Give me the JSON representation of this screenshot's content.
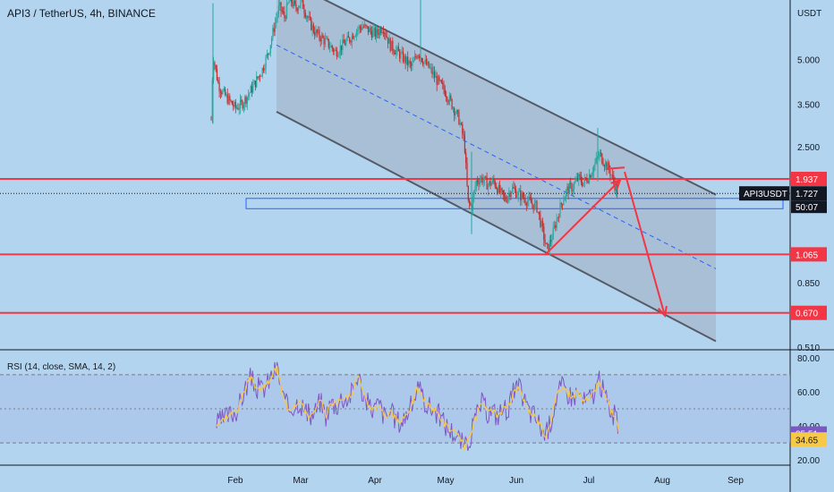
{
  "chart_data": {
    "type": "candlestick",
    "title": "API3 / TetherUS, 4h, BINANCE",
    "currency": "USDT",
    "symbol_tag": "API3USDT",
    "countdown": "50:07",
    "y_scale": "log",
    "ylim": [
      0.5,
      8.0
    ],
    "price_ticks": [
      "5.000",
      "3.500",
      "2.500",
      "0.850",
      "0.510"
    ],
    "price_tick_values": [
      5.0,
      3.5,
      2.5,
      0.85,
      0.51
    ],
    "time_ticks": [
      "Feb",
      "Mar",
      "Apr",
      "May",
      "Jun",
      "Jul",
      "Aug",
      "Sep"
    ],
    "levels": [
      {
        "value": 1.937,
        "label": "1.937"
      },
      {
        "value": 1.065,
        "label": "1.065"
      },
      {
        "value": 0.67,
        "label": "0.670"
      }
    ],
    "current_price": {
      "value": 1.727,
      "label": "1.727"
    },
    "channel": {
      "x_start": 309,
      "x_end": 800,
      "upper_start": 9.7,
      "upper_end": 1.71,
      "median_start": 5.6,
      "median_end": 0.95,
      "lower_start": 3.3,
      "lower_end": 0.535
    },
    "zone": {
      "top": 1.66,
      "bottom": 1.53
    },
    "price_path": [
      [
        236,
        3.1
      ],
      [
        238,
        5.2
      ],
      [
        241,
        4.6
      ],
      [
        244,
        4.1
      ],
      [
        250,
        3.8
      ],
      [
        256,
        3.6
      ],
      [
        263,
        3.4
      ],
      [
        270,
        3.5
      ],
      [
        278,
        3.8
      ],
      [
        286,
        4.2
      ],
      [
        293,
        4.6
      ],
      [
        300,
        5.3
      ],
      [
        306,
        6.4
      ],
      [
        312,
        7.6
      ],
      [
        318,
        7.0
      ],
      [
        324,
        8.1
      ],
      [
        330,
        7.5
      ],
      [
        337,
        7.9
      ],
      [
        345,
        6.8
      ],
      [
        352,
        6.2
      ],
      [
        360,
        5.9
      ],
      [
        368,
        5.6
      ],
      [
        375,
        5.3
      ],
      [
        383,
        5.6
      ],
      [
        391,
        5.9
      ],
      [
        398,
        6.3
      ],
      [
        405,
        6.5
      ],
      [
        412,
        6.3
      ],
      [
        420,
        6.1
      ],
      [
        428,
        6.5
      ],
      [
        436,
        5.6
      ],
      [
        444,
        5.3
      ],
      [
        452,
        5.0
      ],
      [
        460,
        4.7
      ],
      [
        467,
        5.3
      ],
      [
        474,
        4.9
      ],
      [
        481,
        4.6
      ],
      [
        489,
        4.2
      ],
      [
        497,
        3.9
      ],
      [
        505,
        3.5
      ],
      [
        513,
        3.1
      ],
      [
        519,
        2.6
      ],
      [
        523,
        1.6
      ],
      [
        527,
        1.55
      ],
      [
        532,
        1.9
      ],
      [
        538,
        1.95
      ],
      [
        545,
        1.85
      ],
      [
        552,
        1.9
      ],
      [
        558,
        1.75
      ],
      [
        565,
        1.65
      ],
      [
        572,
        1.8
      ],
      [
        579,
        1.72
      ],
      [
        586,
        1.66
      ],
      [
        593,
        1.6
      ],
      [
        600,
        1.55
      ],
      [
        606,
        1.3
      ],
      [
        611,
        1.1
      ],
      [
        616,
        1.2
      ],
      [
        622,
        1.4
      ],
      [
        628,
        1.62
      ],
      [
        634,
        1.78
      ],
      [
        640,
        1.82
      ],
      [
        646,
        1.95
      ],
      [
        652,
        1.88
      ],
      [
        658,
        1.98
      ],
      [
        664,
        2.15
      ],
      [
        670,
        2.35
      ],
      [
        676,
        2.2
      ],
      [
        682,
        2.05
      ],
      [
        687,
        1.85
      ],
      [
        690,
        1.75
      ]
    ],
    "projection": {
      "up": [
        [
          609,
          1.06
        ],
        [
          693,
          1.92
        ]
      ],
      "peak": [
        [
          679,
          2.1
        ],
        [
          698,
          2.12
        ]
      ],
      "down": [
        [
          698,
          2.05
        ],
        [
          743,
          0.655
        ]
      ]
    },
    "rsi": {
      "title": "RSI (14, close, SMA, 14, 2)",
      "ticks": [
        "80.00",
        "60.00",
        "40.00",
        "20.00"
      ],
      "tick_values": [
        80,
        60,
        40,
        20
      ],
      "ylim": [
        18,
        82
      ],
      "upper_band": 70,
      "middle_band": 50,
      "lower_band": 30,
      "rsi_value": {
        "value": 35.51,
        "label": "35.51"
      },
      "sma_value": {
        "value": 34.65,
        "label": "34.65"
      },
      "series": [
        [
          242,
          41
        ],
        [
          250,
          44
        ],
        [
          258,
          47
        ],
        [
          266,
          50
        ],
        [
          274,
          62
        ],
        [
          280,
          68
        ],
        [
          286,
          63
        ],
        [
          292,
          61
        ],
        [
          298,
          64
        ],
        [
          304,
          70
        ],
        [
          310,
          74
        ],
        [
          316,
          57
        ],
        [
          322,
          50
        ],
        [
          328,
          52
        ],
        [
          334,
          55
        ],
        [
          340,
          50
        ],
        [
          346,
          45
        ],
        [
          352,
          48
        ],
        [
          358,
          55
        ],
        [
          364,
          46
        ],
        [
          370,
          54
        ],
        [
          376,
          52
        ],
        [
          382,
          57
        ],
        [
          388,
          56
        ],
        [
          394,
          60
        ],
        [
          400,
          71
        ],
        [
          406,
          58
        ],
        [
          412,
          52
        ],
        [
          418,
          50
        ],
        [
          424,
          53
        ],
        [
          430,
          45
        ],
        [
          436,
          48
        ],
        [
          442,
          44
        ],
        [
          448,
          42
        ],
        [
          454,
          47
        ],
        [
          460,
          52
        ],
        [
          466,
          62
        ],
        [
          472,
          57
        ],
        [
          478,
          52
        ],
        [
          484,
          50
        ],
        [
          490,
          47
        ],
        [
          496,
          42
        ],
        [
          502,
          38
        ],
        [
          508,
          36
        ],
        [
          514,
          32
        ],
        [
          520,
          27
        ],
        [
          526,
          35
        ],
        [
          532,
          45
        ],
        [
          538,
          54
        ],
        [
          544,
          48
        ],
        [
          550,
          49
        ],
        [
          556,
          46
        ],
        [
          562,
          50
        ],
        [
          568,
          51
        ],
        [
          574,
          60
        ],
        [
          580,
          62
        ],
        [
          586,
          55
        ],
        [
          592,
          48
        ],
        [
          598,
          46
        ],
        [
          604,
          40
        ],
        [
          610,
          34
        ],
        [
          616,
          44
        ],
        [
          622,
          58
        ],
        [
          628,
          63
        ],
        [
          634,
          60
        ],
        [
          640,
          57
        ],
        [
          646,
          60
        ],
        [
          652,
          54
        ],
        [
          658,
          56
        ],
        [
          664,
          60
        ],
        [
          670,
          66
        ],
        [
          676,
          58
        ],
        [
          682,
          50
        ],
        [
          688,
          44
        ],
        [
          692,
          36
        ]
      ]
    }
  },
  "colors": {
    "background": "#b3d4ef",
    "level_red": "#f23645",
    "bull": "#26a69a",
    "bear": "#c62828",
    "rsi_line": "#7e57c2",
    "rsi_sma": "#f7c948"
  }
}
